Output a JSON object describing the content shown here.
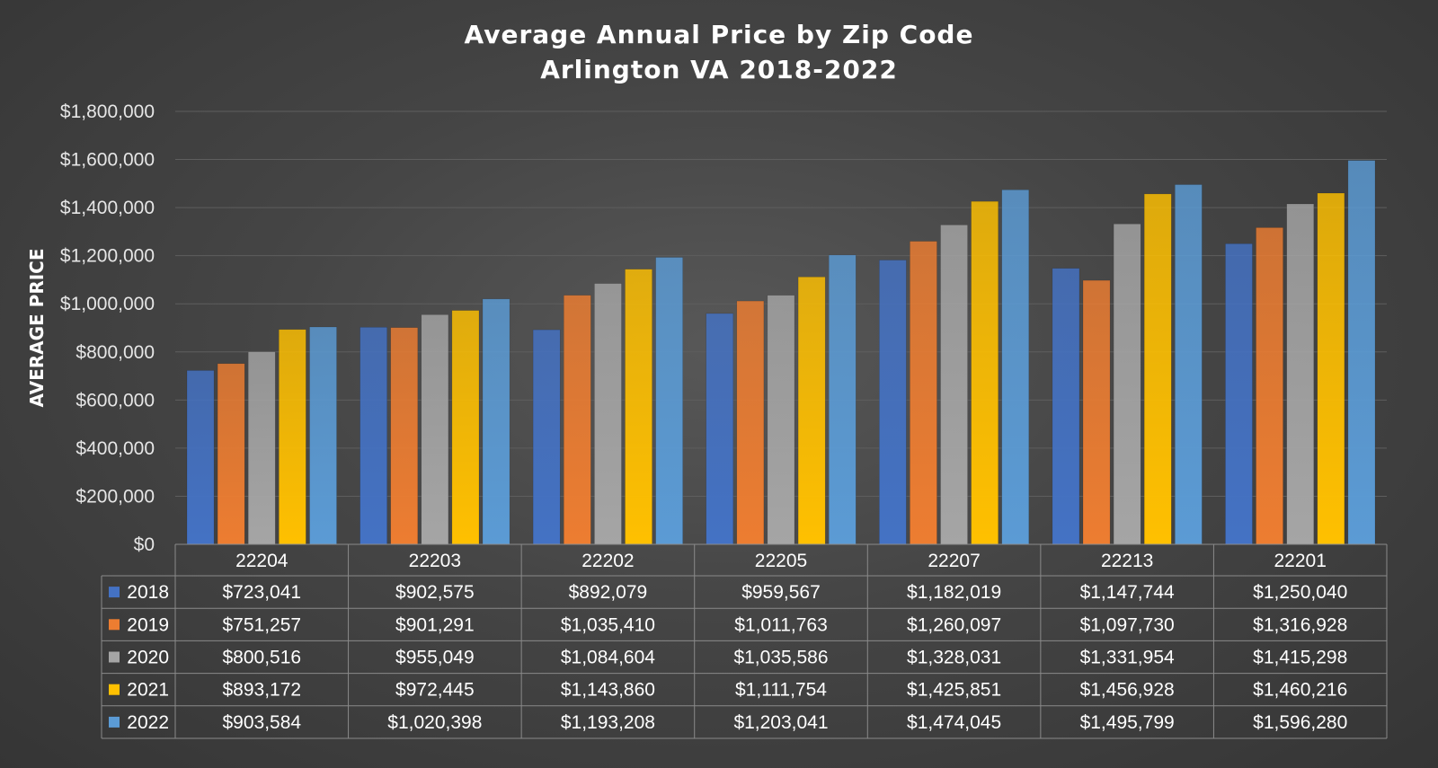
{
  "chart_data": {
    "type": "bar",
    "title": [
      "Average Annual Price by Zip Code",
      "Arlington VA 2018-2022"
    ],
    "xlabel": "",
    "ylabel": "AVERAGE PRICE",
    "ylim": [
      0,
      1800000
    ],
    "y_ticks": [
      0,
      200000,
      400000,
      600000,
      800000,
      1000000,
      1200000,
      1400000,
      1600000,
      1800000
    ],
    "y_tick_labels": [
      "$0",
      "$200,000",
      "$400,000",
      "$600,000",
      "$800,000",
      "$1,000,000",
      "$1,200,000",
      "$1,400,000",
      "$1,600,000",
      "$1,800,000"
    ],
    "grid": true,
    "categories": [
      "22204",
      "22203",
      "22202",
      "22205",
      "22207",
      "22213",
      "22201"
    ],
    "series": [
      {
        "name": "2018",
        "color": "#4472C4",
        "values": [
          723041,
          902575,
          892079,
          959567,
          1182019,
          1147744,
          1250040
        ],
        "labels": [
          "$723,041",
          "$902,575",
          "$892,079",
          "$959,567",
          "$1,182,019",
          "$1,147,744",
          "$1,250,040"
        ]
      },
      {
        "name": "2019",
        "color": "#ED7D31",
        "values": [
          751257,
          901291,
          1035410,
          1011763,
          1260097,
          1097730,
          1316928
        ],
        "labels": [
          "$751,257",
          "$901,291",
          "$1,035,410",
          "$1,011,763",
          "$1,260,097",
          "$1,097,730",
          "$1,316,928"
        ]
      },
      {
        "name": "2020",
        "color": "#A5A5A5",
        "values": [
          800516,
          955049,
          1084604,
          1035586,
          1328031,
          1331954,
          1415298
        ],
        "labels": [
          "$800,516",
          "$955,049",
          "$1,084,604",
          "$1,035,586",
          "$1,328,031",
          "$1,331,954",
          "$1,415,298"
        ]
      },
      {
        "name": "2021",
        "color": "#FFC000",
        "values": [
          893172,
          972445,
          1143860,
          1111754,
          1425851,
          1456928,
          1460216
        ],
        "labels": [
          "$893,172",
          "$972,445",
          "$1,143,860",
          "$1,111,754",
          "$1,425,851",
          "$1,456,928",
          "$1,460,216"
        ]
      },
      {
        "name": "2022",
        "color": "#5B9BD5",
        "values": [
          903584,
          1020398,
          1193208,
          1203041,
          1474045,
          1495799,
          1596280
        ],
        "labels": [
          "$903,584",
          "$1,020,398",
          "$1,193,208",
          "$1,203,041",
          "$1,474,045",
          "$1,495,799",
          "$1,596,280"
        ]
      }
    ],
    "legend": "data-table-below"
  }
}
